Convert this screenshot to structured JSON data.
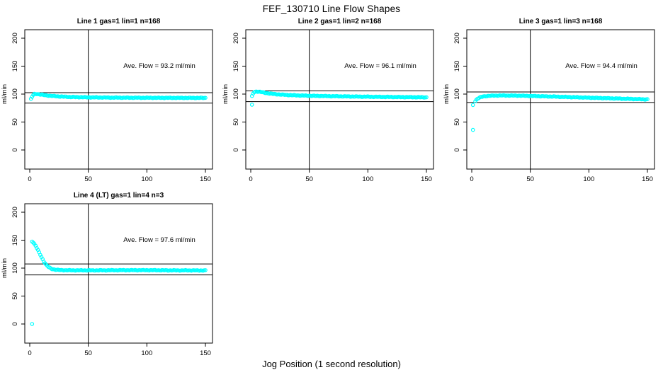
{
  "page": {
    "background": "#ffffff"
  },
  "chart_data": {
    "type": "scatter",
    "title": "FEF_130710  Line Flow Shapes",
    "xlabel": "Jog Position (1 second resolution)",
    "ylabel": "ml/min",
    "point_color": "#00ffff",
    "axis_color": "#000000",
    "xlim": [
      0,
      150
    ],
    "ylim": [
      0,
      200
    ],
    "x_ticks": [
      0,
      50,
      100,
      150
    ],
    "y_ticks": [
      0,
      50,
      100,
      150,
      200
    ],
    "vline_x": 50,
    "grid": false,
    "legend": "none",
    "subplots": [
      {
        "title": "Line 1 gas=1 lin=1 n=168",
        "annotation": "Ave. Flow =  93.2  ml/min",
        "ave_flow": 93.2,
        "n": 168,
        "ref_lines": [
          102.5,
          83.9
        ],
        "points": [
          [
            1,
            91
          ],
          [
            2,
            95
          ],
          [
            3,
            98.5
          ],
          [
            4,
            100
          ],
          [
            6,
            100.3
          ],
          [
            9,
            99.3
          ],
          [
            13,
            98
          ],
          [
            18,
            96.8
          ],
          [
            25,
            95.8
          ],
          [
            35,
            94.8
          ],
          [
            50,
            94.2
          ],
          [
            70,
            93.7
          ],
          [
            100,
            93.4
          ],
          [
            130,
            93.2
          ],
          [
            150,
            93.2
          ]
        ],
        "outliers": []
      },
      {
        "title": "Line 2 gas=1 lin=2 n=168",
        "annotation": "Ave. Flow =  96.1  ml/min",
        "ave_flow": 96.1,
        "n": 168,
        "ref_lines": [
          105.7,
          86.5
        ],
        "points": [
          [
            1,
            96
          ],
          [
            2,
            101
          ],
          [
            3,
            103.5
          ],
          [
            5,
            104.8
          ],
          [
            8,
            104
          ],
          [
            12,
            102.3
          ],
          [
            18,
            100.5
          ],
          [
            25,
            99.2
          ],
          [
            35,
            98
          ],
          [
            50,
            97
          ],
          [
            70,
            96.2
          ],
          [
            95,
            95.4
          ],
          [
            120,
            94.8
          ],
          [
            150,
            94.2
          ]
        ],
        "outliers": [
          [
            1,
            81
          ]
        ]
      },
      {
        "title": "Line 3 gas=1 lin=3 n=168",
        "annotation": "Ave. Flow =  94.4  ml/min",
        "ave_flow": 94.4,
        "n": 168,
        "ref_lines": [
          103.8,
          85.0
        ],
        "points": [
          [
            3,
            87.5
          ],
          [
            4,
            90
          ],
          [
            5,
            92
          ],
          [
            7,
            94
          ],
          [
            10,
            95.8
          ],
          [
            14,
            96.8
          ],
          [
            20,
            97.4
          ],
          [
            28,
            97.5
          ],
          [
            40,
            97.2
          ],
          [
            55,
            96.4
          ],
          [
            75,
            95.2
          ],
          [
            100,
            93.6
          ],
          [
            125,
            92
          ],
          [
            150,
            90.5
          ]
        ],
        "outliers": [
          [
            1,
            36
          ],
          [
            1,
            80.5
          ]
        ]
      },
      {
        "title": "Line 4 (LT) gas=1 lin=4 n=3",
        "annotation": "Ave. Flow =  97.6  ml/min",
        "ave_flow": 97.6,
        "n": 3,
        "ref_lines": [
          107.4,
          87.8
        ],
        "points": [
          [
            2,
            148
          ],
          [
            3,
            146
          ],
          [
            4,
            143
          ],
          [
            5,
            140
          ],
          [
            6,
            136
          ],
          [
            7,
            132
          ],
          [
            8,
            128
          ],
          [
            9,
            124
          ],
          [
            10,
            120
          ],
          [
            11,
            116
          ],
          [
            12,
            112
          ],
          [
            13,
            109
          ],
          [
            14,
            106
          ],
          [
            15,
            104
          ],
          [
            16,
            102
          ],
          [
            17,
            100.5
          ],
          [
            18,
            99.5
          ],
          [
            19,
            98.5
          ],
          [
            20,
            98
          ],
          [
            22,
            97.2
          ],
          [
            25,
            96.6
          ],
          [
            30,
            96.2
          ],
          [
            40,
            96
          ],
          [
            60,
            96
          ],
          [
            80,
            96.3
          ],
          [
            100,
            96.3
          ],
          [
            120,
            96
          ],
          [
            150,
            95.8
          ]
        ],
        "outliers": [
          [
            2,
            0
          ]
        ]
      }
    ]
  }
}
